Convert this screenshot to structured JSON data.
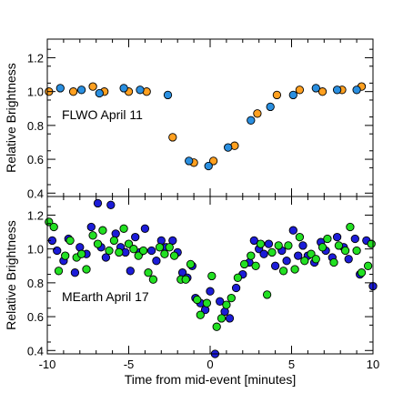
{
  "chart_data": [
    {
      "type": "scatter",
      "panel": "top",
      "annotation": "FLWO April 11",
      "ylabel": "Relative Brightness",
      "xlabel": "",
      "xlim": [
        -10,
        10
      ],
      "ylim": [
        0.38,
        1.31
      ],
      "yticks": [
        0.4,
        0.6,
        0.8,
        1.0,
        1.2
      ],
      "ytick_labels": [
        "0.4",
        "0.6",
        "0.8",
        "1.0",
        "1.2"
      ],
      "xtick_labels_shown": false,
      "series": [
        {
          "color": "#ffa020",
          "points": [
            [
              -9.9,
              1.0
            ],
            [
              -8.4,
              1.0
            ],
            [
              -7.2,
              1.03
            ],
            [
              -6.5,
              1.0
            ],
            [
              -5.0,
              1.0
            ],
            [
              -3.9,
              1.0
            ],
            [
              -2.3,
              0.73
            ],
            [
              -1.0,
              0.58
            ],
            [
              0.2,
              0.59
            ],
            [
              1.5,
              0.68
            ],
            [
              2.9,
              0.87
            ],
            [
              4.1,
              0.98
            ],
            [
              5.5,
              1.01
            ],
            [
              6.9,
              1.0
            ],
            [
              8.1,
              1.01
            ],
            [
              9.3,
              1.03
            ]
          ]
        },
        {
          "color": "#2a8fe0",
          "points": [
            [
              -9.2,
              1.02
            ],
            [
              -7.9,
              1.01
            ],
            [
              -6.8,
              0.99
            ],
            [
              -5.3,
              1.02
            ],
            [
              -4.3,
              1.01
            ],
            [
              -2.6,
              0.98
            ],
            [
              -1.3,
              0.59
            ],
            [
              -0.1,
              0.56
            ],
            [
              1.1,
              0.67
            ],
            [
              2.5,
              0.83
            ],
            [
              3.7,
              0.91
            ],
            [
              5.1,
              0.98
            ],
            [
              6.5,
              1.02
            ],
            [
              7.8,
              1.01
            ],
            [
              9.0,
              1.01
            ]
          ]
        }
      ]
    },
    {
      "type": "scatter",
      "panel": "bottom",
      "annotation": "MEarth April 17",
      "ylabel": "Relative Brightness",
      "xlabel": "Time from mid-event [minutes]",
      "xlim": [
        -10,
        10
      ],
      "ylim": [
        0.38,
        1.31
      ],
      "xticks": [
        -10,
        -5,
        0,
        5,
        10
      ],
      "xtick_labels": [
        "-10",
        "-5",
        "0",
        "5",
        "10"
      ],
      "yticks": [
        0.4,
        0.6,
        0.8,
        1.0,
        1.2
      ],
      "ytick_labels": [
        "0.4",
        "0.6",
        "0.8",
        "1.0",
        "1.2"
      ],
      "series": [
        {
          "color": "#1c1cd8",
          "points": [
            [
              -9.7,
              1.05
            ],
            [
              -9.4,
              0.99
            ],
            [
              -9.0,
              0.93
            ],
            [
              -8.7,
              1.06
            ],
            [
              -8.3,
              0.86
            ],
            [
              -8.0,
              1.01
            ],
            [
              -7.6,
              0.97
            ],
            [
              -7.3,
              1.13
            ],
            [
              -6.9,
              1.27
            ],
            [
              -6.7,
              1.01
            ],
            [
              -6.4,
              0.95
            ],
            [
              -6.1,
              1.26
            ],
            [
              -5.8,
              1.09
            ],
            [
              -5.5,
              1.01
            ],
            [
              -5.2,
              0.98
            ],
            [
              -4.9,
              0.87
            ],
            [
              -4.6,
              1.07
            ],
            [
              -4.3,
              0.98
            ],
            [
              -4.0,
              1.12
            ],
            [
              -3.6,
              0.99
            ],
            [
              -3.3,
              0.93
            ],
            [
              -3.0,
              1.05
            ],
            [
              -2.7,
              1.01
            ],
            [
              -2.3,
              1.05
            ],
            [
              -2.0,
              0.98
            ],
            [
              -1.7,
              0.86
            ],
            [
              -1.4,
              0.83
            ],
            [
              -1.1,
              0.9
            ],
            [
              -0.9,
              0.71
            ],
            [
              -0.6,
              0.68
            ],
            [
              -0.3,
              0.64
            ],
            [
              0.0,
              0.75
            ],
            [
              0.3,
              0.38
            ],
            [
              0.6,
              0.69
            ],
            [
              0.9,
              0.63
            ],
            [
              1.2,
              0.59
            ],
            [
              1.6,
              0.77
            ],
            [
              2.0,
              0.85
            ],
            [
              2.4,
              0.92
            ],
            [
              2.7,
              1.05
            ],
            [
              3.0,
              1.0
            ],
            [
              3.3,
              0.97
            ],
            [
              3.6,
              1.03
            ],
            [
              4.0,
              0.9
            ],
            [
              4.4,
              0.99
            ],
            [
              4.7,
              0.93
            ],
            [
              5.1,
              1.11
            ],
            [
              5.4,
              0.96
            ],
            [
              5.7,
              1.02
            ],
            [
              6.0,
              0.96
            ],
            [
              6.4,
              0.92
            ],
            [
              6.8,
              1.04
            ],
            [
              7.1,
              0.99
            ],
            [
              7.5,
              0.95
            ],
            [
              7.8,
              1.07
            ],
            [
              8.2,
              1.01
            ],
            [
              8.5,
              0.94
            ],
            [
              8.9,
              1.06
            ],
            [
              9.2,
              0.85
            ],
            [
              9.6,
              1.05
            ],
            [
              10.0,
              0.78
            ]
          ]
        },
        {
          "color": "#22e022",
          "points": [
            [
              -9.9,
              1.16
            ],
            [
              -9.6,
              1.13
            ],
            [
              -9.3,
              0.87
            ],
            [
              -8.9,
              0.96
            ],
            [
              -8.6,
              1.05
            ],
            [
              -8.2,
              0.95
            ],
            [
              -7.9,
              0.97
            ],
            [
              -7.6,
              0.88
            ],
            [
              -7.2,
              1.08
            ],
            [
              -6.9,
              1.03
            ],
            [
              -6.6,
              1.11
            ],
            [
              -6.2,
              0.99
            ],
            [
              -5.9,
              1.05
            ],
            [
              -5.6,
              0.98
            ],
            [
              -5.3,
              1.12
            ],
            [
              -5.0,
              1.03
            ],
            [
              -4.7,
              1.0
            ],
            [
              -4.4,
              0.96
            ],
            [
              -4.1,
              0.99
            ],
            [
              -3.8,
              0.86
            ],
            [
              -3.5,
              0.82
            ],
            [
              -3.1,
              1.01
            ],
            [
              -2.8,
              0.97
            ],
            [
              -2.5,
              1.01
            ],
            [
              -2.2,
              0.96
            ],
            [
              -1.8,
              0.82
            ],
            [
              -1.5,
              0.82
            ],
            [
              -1.2,
              0.91
            ],
            [
              -0.8,
              0.7
            ],
            [
              -0.6,
              0.61
            ],
            [
              -0.2,
              0.68
            ],
            [
              0.1,
              0.84
            ],
            [
              0.4,
              0.54
            ],
            [
              0.7,
              0.59
            ],
            [
              1.0,
              0.67
            ],
            [
              1.3,
              0.71
            ],
            [
              1.7,
              0.83
            ],
            [
              2.1,
              0.91
            ],
            [
              2.5,
              0.96
            ],
            [
              2.8,
              0.9
            ],
            [
              3.1,
              1.03
            ],
            [
              3.5,
              0.73
            ],
            [
              3.8,
              0.98
            ],
            [
              4.2,
              1.02
            ],
            [
              4.5,
              0.87
            ],
            [
              4.8,
              1.02
            ],
            [
              5.2,
              0.88
            ],
            [
              5.5,
              1.07
            ],
            [
              5.8,
              0.93
            ],
            [
              6.2,
              0.97
            ],
            [
              6.5,
              0.94
            ],
            [
              6.9,
              1.01
            ],
            [
              7.2,
              1.06
            ],
            [
              7.6,
              0.92
            ],
            [
              7.9,
              1.02
            ],
            [
              8.3,
              0.99
            ],
            [
              8.6,
              1.13
            ],
            [
              9.0,
              0.99
            ],
            [
              9.3,
              0.86
            ],
            [
              9.7,
              0.9
            ],
            [
              9.9,
              1.03
            ]
          ]
        }
      ]
    }
  ]
}
